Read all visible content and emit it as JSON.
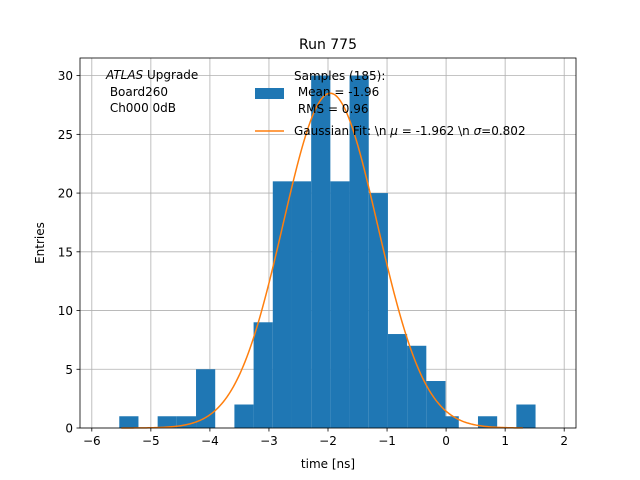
{
  "chart_data": {
    "type": "bar",
    "title": "Run 775",
    "xlabel": "time [ns]",
    "ylabel": "Entries",
    "xlim": [
      -6.2,
      2.2
    ],
    "ylim": [
      0,
      31.5
    ],
    "x_ticks": [
      -6,
      -5,
      -4,
      -3,
      -2,
      -1,
      0,
      1,
      2
    ],
    "y_ticks": [
      0,
      5,
      10,
      15,
      20,
      25,
      30
    ],
    "grid": true,
    "legend_position": "top-right",
    "annotation": {
      "italic": "ATLAS",
      "line1_rest": " Upgrade",
      "line2": " Board260",
      "line3": " Ch000 0dB"
    },
    "histogram": {
      "name_lines": [
        "Samples (185):",
        " Mean = -1.96",
        " RMS = 0.96"
      ],
      "color": "#1f77b4",
      "bins": [
        {
          "x0": -5.535,
          "x1": -5.21,
          "count": 1
        },
        {
          "x0": -4.885,
          "x1": -4.56,
          "count": 1
        },
        {
          "x0": -4.56,
          "x1": -4.235,
          "count": 1
        },
        {
          "x0": -4.235,
          "x1": -3.91,
          "count": 5
        },
        {
          "x0": -3.585,
          "x1": -3.26,
          "count": 2
        },
        {
          "x0": -3.26,
          "x1": -2.935,
          "count": 9
        },
        {
          "x0": -2.935,
          "x1": -2.61,
          "count": 21
        },
        {
          "x0": -2.61,
          "x1": -2.285,
          "count": 21
        },
        {
          "x0": -2.285,
          "x1": -1.96,
          "count": 30
        },
        {
          "x0": -1.96,
          "x1": -1.635,
          "count": 21
        },
        {
          "x0": -1.635,
          "x1": -1.31,
          "count": 30
        },
        {
          "x0": -1.31,
          "x1": -0.985,
          "count": 20
        },
        {
          "x0": -0.985,
          "x1": -0.66,
          "count": 8
        },
        {
          "x0": -0.66,
          "x1": -0.335,
          "count": 7
        },
        {
          "x0": -0.335,
          "x1": -0.01,
          "count": 4
        },
        {
          "x0": -0.01,
          "x1": 0.215,
          "count": 1
        },
        {
          "x0": 0.54,
          "x1": 0.865,
          "count": 1
        },
        {
          "x0": 1.19,
          "x1": 1.515,
          "count": 2
        }
      ]
    },
    "fit": {
      "name": "Gaussian Fit: \\n $\\mu$ = -1.962 \\n $\\sigma$=0.802",
      "label_prefix": "Gaussian Fit: \\n ",
      "mu_symbol": "μ",
      "label_mid": " = -1.962 \\n ",
      "sigma_symbol": "σ",
      "label_suffix": "=0.802",
      "color": "#ff7f0e",
      "mu": -1.962,
      "sigma": 0.802,
      "amplitude": 28.5,
      "x_range": [
        -5.5,
        1.3
      ]
    }
  }
}
